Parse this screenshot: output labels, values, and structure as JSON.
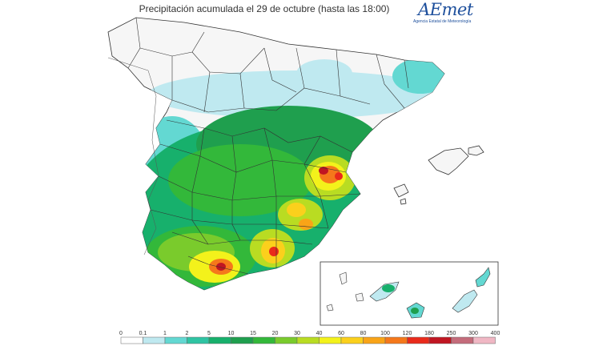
{
  "title": "Precipitación acumulada el 29 de octubre (hasta las 18:00)",
  "logo": {
    "wordmark": "AEmet",
    "tagline": "Agencia Estatal de Meteorología"
  },
  "legend": {
    "breaks": [
      "0",
      "0.1",
      "1",
      "2",
      "5",
      "10",
      "15",
      "20",
      "30",
      "40",
      "60",
      "80",
      "100",
      "120",
      "180",
      "250",
      "300",
      "400"
    ],
    "colors": [
      "#ffffff",
      "#bfe9f0",
      "#63d8d2",
      "#2fc4a3",
      "#17b06c",
      "#1f9f4e",
      "#33b83a",
      "#7acb2c",
      "#b9dc22",
      "#f3f21b",
      "#fbd01c",
      "#f9a417",
      "#f5781b",
      "#e92a1b",
      "#c01622",
      "#c46c7b",
      "#f0b7c4"
    ]
  },
  "colors": {
    "land_dry": "#f6f6f6",
    "border": "#333333",
    "sea": "#ffffff"
  }
}
